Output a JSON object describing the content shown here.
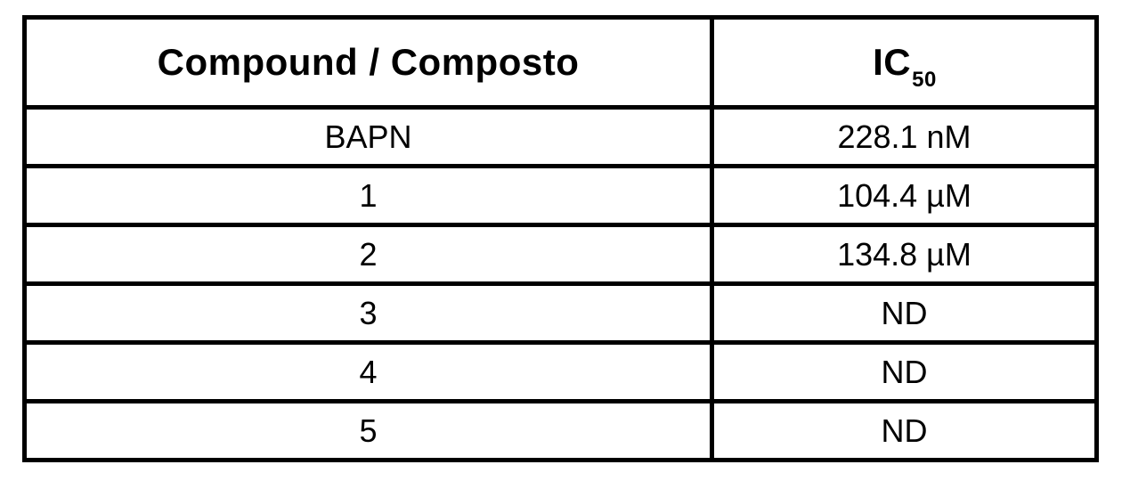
{
  "page": {
    "background_color": "#ffffff",
    "border_color": "#000000",
    "text_color": "#000000"
  },
  "table": {
    "headers": {
      "compound": "Compound / Composto",
      "ic50_base": "IC",
      "ic50_sub": "50"
    },
    "rows": [
      {
        "compound": "BAPN",
        "ic50": "228.1 nM"
      },
      {
        "compound": "1",
        "ic50": "104.4 µM"
      },
      {
        "compound": "2",
        "ic50": "134.8 µM"
      },
      {
        "compound": "3",
        "ic50": "ND"
      },
      {
        "compound": "4",
        "ic50": "ND"
      },
      {
        "compound": "5",
        "ic50": "ND"
      }
    ]
  },
  "chart_data": {
    "type": "table",
    "columns": [
      "Compound / Composto",
      "IC50"
    ],
    "rows": [
      [
        "BAPN",
        "228.1 nM"
      ],
      [
        "1",
        "104.4 µM"
      ],
      [
        "2",
        "134.8 µM"
      ],
      [
        "3",
        "ND"
      ],
      [
        "4",
        "ND"
      ],
      [
        "5",
        "ND"
      ]
    ]
  }
}
